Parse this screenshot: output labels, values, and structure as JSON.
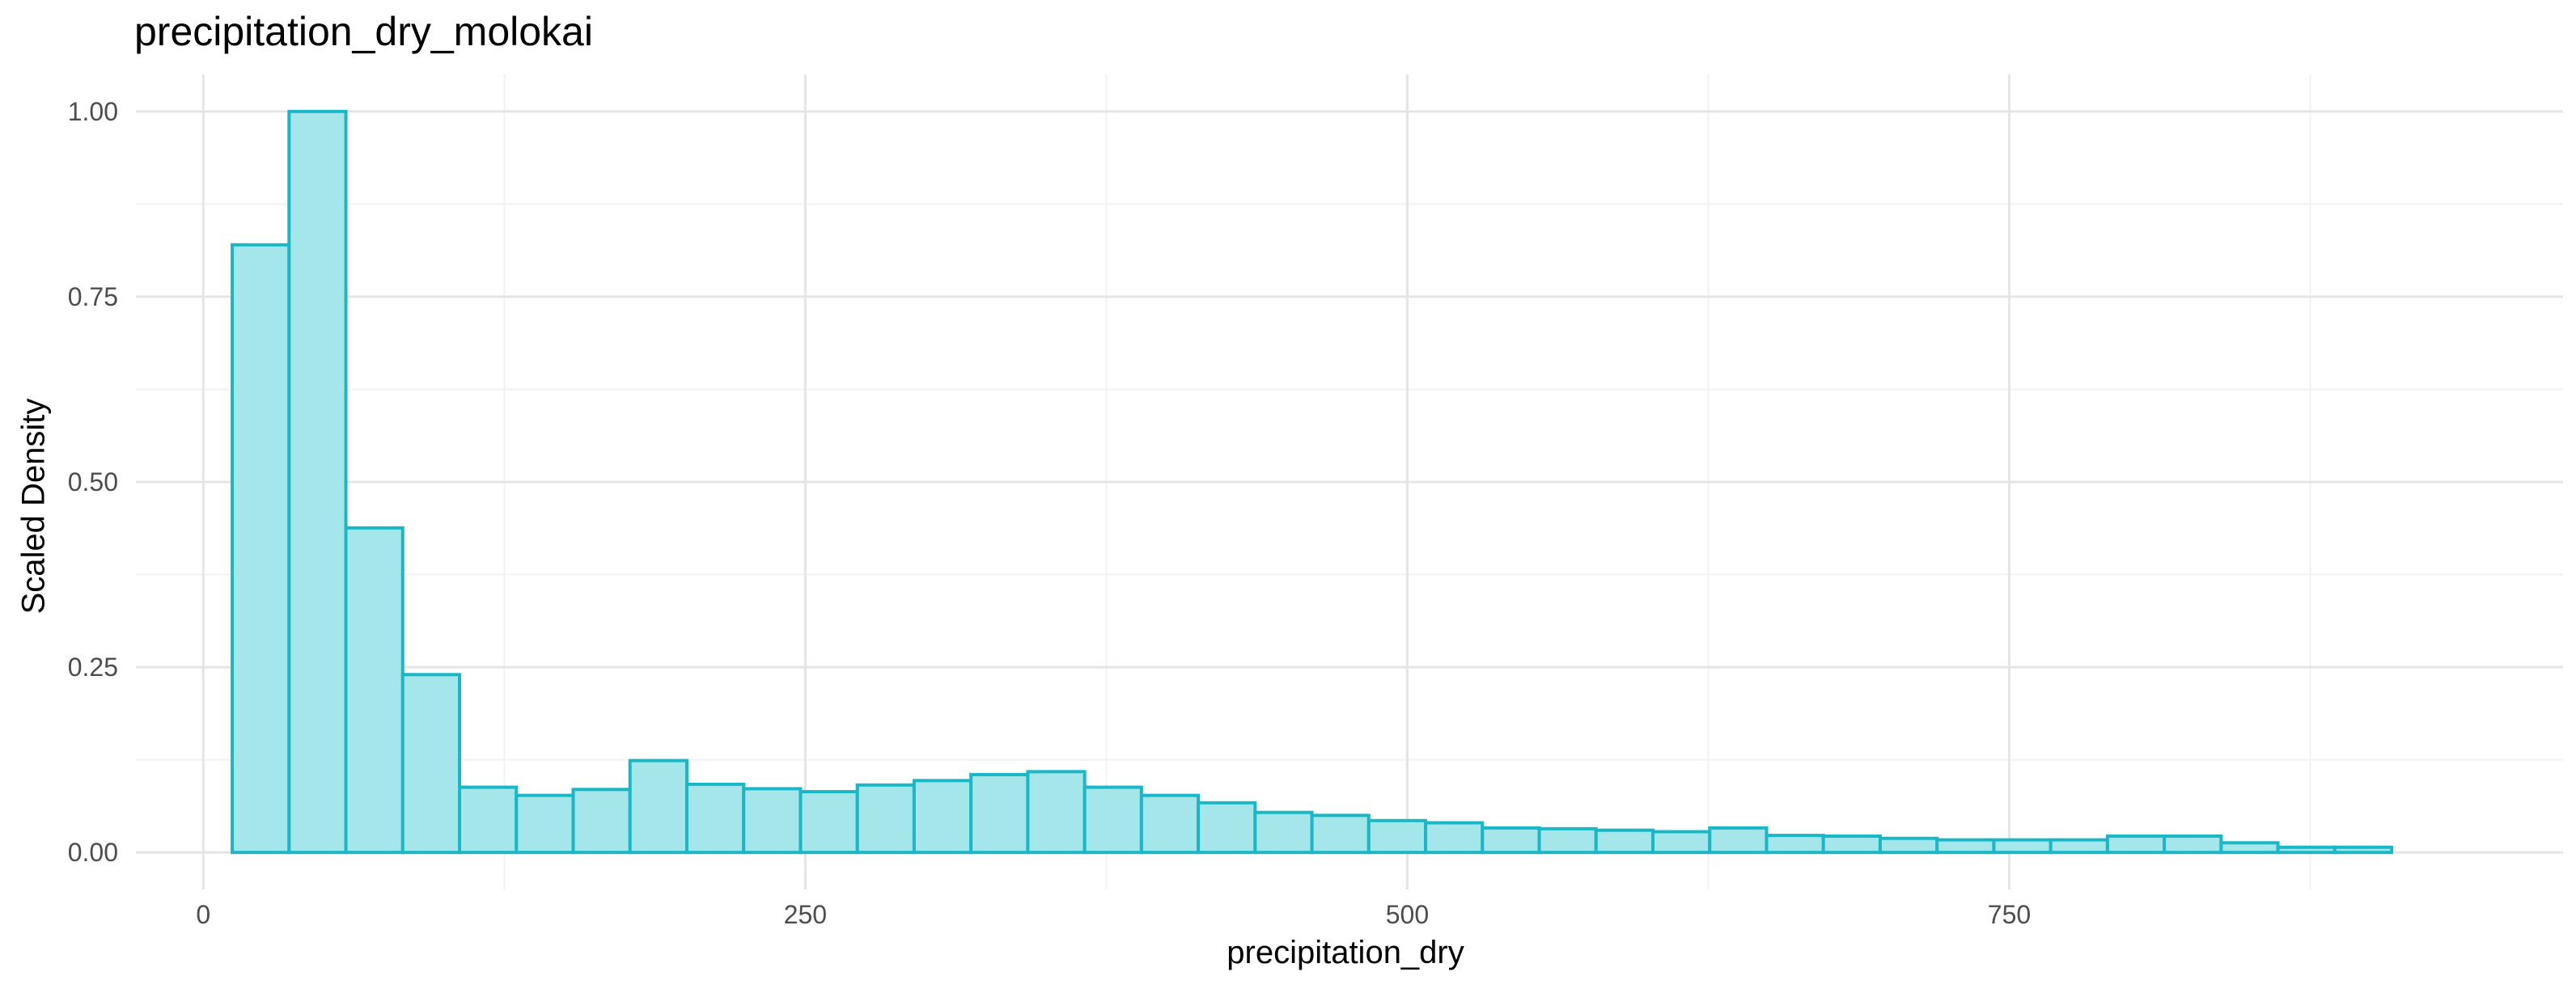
{
  "chart_data": {
    "type": "bar",
    "title": "precipitation_dry_molokai",
    "xlabel": "precipitation_dry",
    "ylabel": "Scaled Density",
    "xlim": [
      -28,
      980
    ],
    "ylim": [
      -0.05,
      1.05
    ],
    "x_ticks": [
      {
        "value": 0,
        "label": "0"
      },
      {
        "value": 250,
        "label": "250"
      },
      {
        "value": 500,
        "label": "500"
      },
      {
        "value": 750,
        "label": "750"
      }
    ],
    "y_ticks": [
      {
        "value": 0,
        "label": "0.00"
      },
      {
        "value": 0.25,
        "label": "0.25"
      },
      {
        "value": 0.5,
        "label": "0.50"
      },
      {
        "value": 0.75,
        "label": "0.75"
      },
      {
        "value": 1.0,
        "label": "1.00"
      }
    ],
    "bin_edges": [
      12,
      35.6,
      59.2,
      82.8,
      106.4,
      130.0,
      153.6,
      177.2,
      200.8,
      224.4,
      248.0,
      271.6,
      295.2,
      318.8,
      342.4,
      366.0,
      389.6,
      413.2,
      436.8,
      460.4,
      484.0,
      507.6,
      531.2,
      554.8,
      578.4,
      602.0,
      625.6,
      649.2,
      672.8,
      696.4,
      720.0,
      743.6,
      767.2,
      790.8,
      814.4,
      838.0,
      861.6,
      885.2,
      908.8
    ],
    "values": [
      0.82,
      1.0,
      0.438,
      0.24,
      0.088,
      0.077,
      0.085,
      0.124,
      0.092,
      0.086,
      0.082,
      0.091,
      0.097,
      0.105,
      0.109,
      0.088,
      0.077,
      0.067,
      0.054,
      0.05,
      0.043,
      0.04,
      0.033,
      0.032,
      0.03,
      0.028,
      0.033,
      0.023,
      0.022,
      0.019,
      0.017,
      0.017,
      0.017,
      0.022,
      0.022,
      0.013,
      0.007,
      0.007
    ],
    "grid": true,
    "legend": "none",
    "colors": {
      "fill": "#a4e6ea",
      "stroke": "#1ab8c6",
      "grid_major": "#e5e5e5",
      "grid_minor": "#f2f2f2",
      "tick_text": "#4d4d4d"
    }
  }
}
